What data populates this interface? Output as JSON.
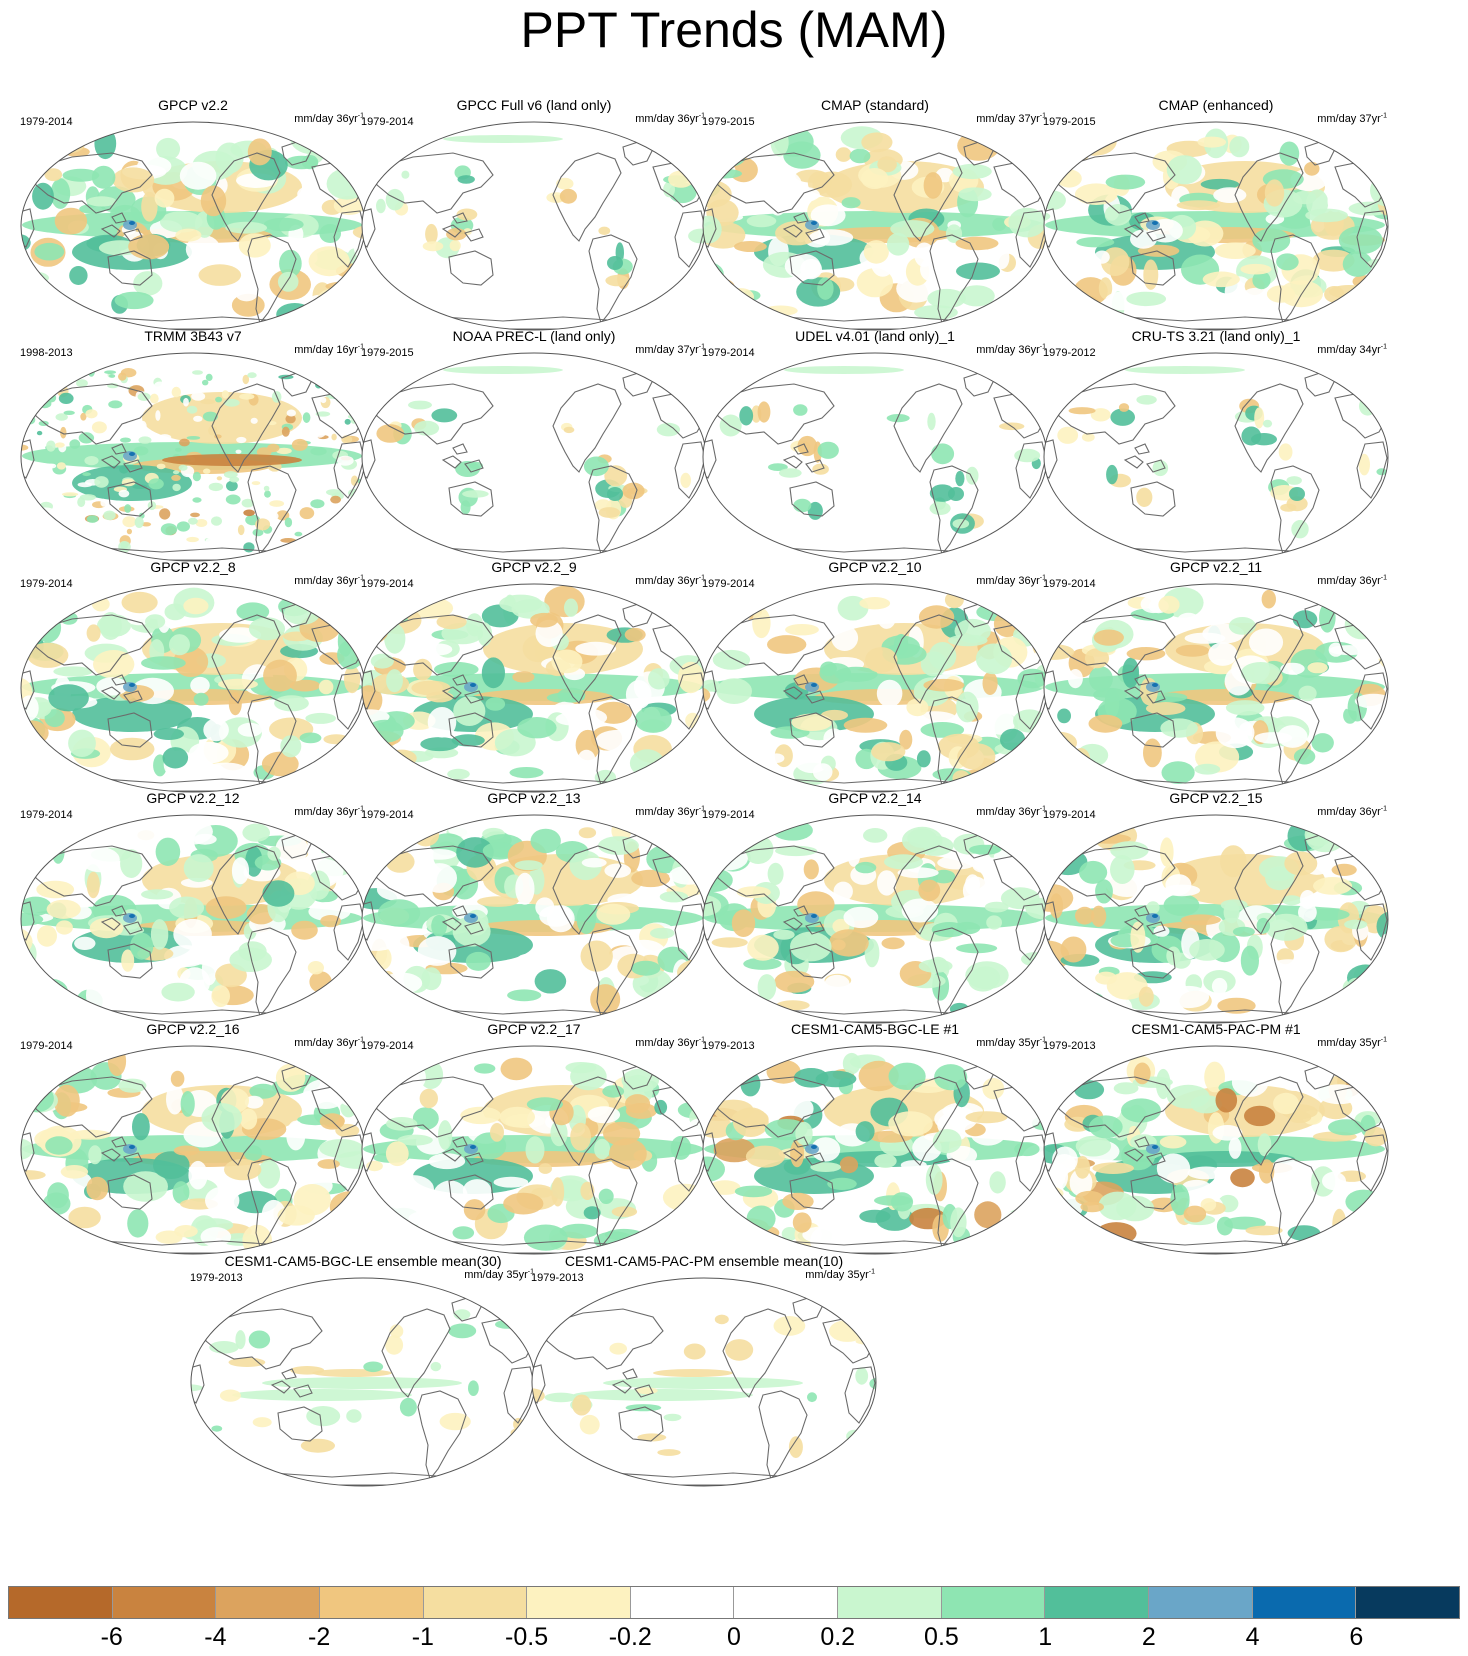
{
  "title": "PPT Trends (MAM)",
  "panels": [
    {
      "title": "GPCP v2.2",
      "period": "1979-2014",
      "units": "mm/day 36yr",
      "kind": "global"
    },
    {
      "title": "GPCC Full v6 (land only)",
      "period": "1979-2014",
      "units": "mm/day 36yr",
      "kind": "land"
    },
    {
      "title": "CMAP (standard)",
      "period": "1979-2015",
      "units": "mm/day 37yr",
      "kind": "global"
    },
    {
      "title": "CMAP (enhanced)",
      "period": "1979-2015",
      "units": "mm/day 37yr",
      "kind": "global"
    },
    {
      "title": "TRMM 3B43 v7",
      "period": "1998-2013",
      "units": "mm/day 16yr",
      "kind": "noisy"
    },
    {
      "title": "NOAA PREC-L (land only)",
      "period": "1979-2015",
      "units": "mm/day 37yr",
      "kind": "land"
    },
    {
      "title": "UDEL v4.01 (land only)_1",
      "period": "1979-2014",
      "units": "mm/day 36yr",
      "kind": "land"
    },
    {
      "title": "CRU-TS 3.21 (land only)_1",
      "period": "1979-2012",
      "units": "mm/day 34yr",
      "kind": "land"
    },
    {
      "title": "GPCP v2.2_8",
      "period": "1979-2014",
      "units": "mm/day 36yr",
      "kind": "global"
    },
    {
      "title": "GPCP v2.2_9",
      "period": "1979-2014",
      "units": "mm/day 36yr",
      "kind": "global"
    },
    {
      "title": "GPCP v2.2_10",
      "period": "1979-2014",
      "units": "mm/day 36yr",
      "kind": "global"
    },
    {
      "title": "GPCP v2.2_11",
      "period": "1979-2014",
      "units": "mm/day 36yr",
      "kind": "global"
    },
    {
      "title": "GPCP v2.2_12",
      "period": "1979-2014",
      "units": "mm/day 36yr",
      "kind": "global"
    },
    {
      "title": "GPCP v2.2_13",
      "period": "1979-2014",
      "units": "mm/day 36yr",
      "kind": "global"
    },
    {
      "title": "GPCP v2.2_14",
      "period": "1979-2014",
      "units": "mm/day 36yr",
      "kind": "global"
    },
    {
      "title": "GPCP v2.2_15",
      "period": "1979-2014",
      "units": "mm/day 36yr",
      "kind": "global"
    },
    {
      "title": "GPCP v2.2_16",
      "period": "1979-2014",
      "units": "mm/day 36yr",
      "kind": "global"
    },
    {
      "title": "GPCP v2.2_17",
      "period": "1979-2014",
      "units": "mm/day 36yr",
      "kind": "global"
    },
    {
      "title": "CESM1-CAM5-BGC-LE #1",
      "period": "1979-2013",
      "units": "mm/day 35yr",
      "kind": "model"
    },
    {
      "title": "CESM1-CAM5-PAC-PM #1",
      "period": "1979-2013",
      "units": "mm/day 35yr",
      "kind": "model"
    },
    {
      "title": "CESM1-CAM5-BGC-LE ensemble mean(30)",
      "period": "1979-2013",
      "units": "mm/day 35yr",
      "kind": "ensemble"
    },
    {
      "title": "CESM1-CAM5-PAC-PM ensemble mean(10)",
      "period": "1979-2013",
      "units": "mm/day 35yr",
      "kind": "ensemble"
    }
  ],
  "units_exponent": "-1",
  "colorbar": {
    "colors": [
      "#b5692a",
      "#c9833f",
      "#dca35e",
      "#f0c67f",
      "#f5dea0",
      "#fdf2c0",
      "#ffffff",
      "#ffffff",
      "#c9f6cf",
      "#8ee5b2",
      "#52bf9a",
      "#6aa6c8",
      "#0a6aae",
      "#073a5e"
    ],
    "labels": [
      "-6",
      "-4",
      "-2",
      "-1",
      "-0.5",
      "-0.2",
      "0",
      "0.2",
      "0.5",
      "1",
      "2",
      "4",
      "6"
    ]
  },
  "palette": {
    "coast": "#6b6b6b",
    "frame": "#555555"
  }
}
